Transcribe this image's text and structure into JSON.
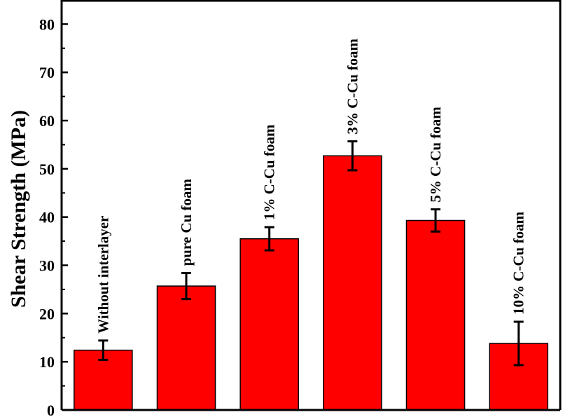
{
  "chart_data": {
    "type": "bar",
    "title": "",
    "xlabel": "",
    "ylabel": "Shear Strength (MPa)",
    "ylim": [
      0,
      85
    ],
    "yticks": [
      0,
      10,
      20,
      30,
      40,
      50,
      60,
      70,
      80
    ],
    "grid": false,
    "legend": "none",
    "bar_color": "#ff0000",
    "categories": [
      "Without interlayer",
      "pure Cu foam",
      "1% C-Cu foam",
      "3% C-Cu foam",
      "5% C-Cu foam",
      "10% C-Cu foam"
    ],
    "values": [
      12.4,
      25.7,
      35.5,
      52.7,
      39.3,
      13.8
    ],
    "errors": [
      2.0,
      2.7,
      2.4,
      3.0,
      2.3,
      4.5
    ]
  }
}
